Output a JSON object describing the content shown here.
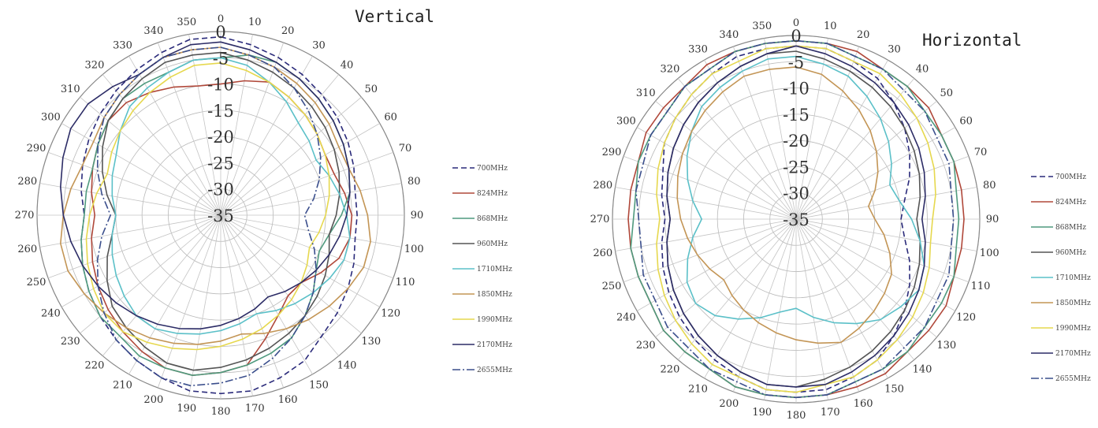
{
  "chart_data": [
    {
      "type": "polar-line",
      "title": "Vertical",
      "angle_ticks": [
        "0",
        "10",
        "20",
        "30",
        "40",
        "50",
        "60",
        "70",
        "80",
        "90",
        "100",
        "110",
        "120",
        "130",
        "140",
        "150",
        "160",
        "170",
        "180",
        "190",
        "200",
        "210",
        "220",
        "230",
        "240",
        "250",
        "260",
        "270",
        "280",
        "290",
        "300",
        "310",
        "320",
        "330",
        "340",
        "350"
      ],
      "radial_ticks": [
        "0",
        "-5",
        "-10",
        "-15",
        "-20",
        "-25",
        "-30",
        "-35"
      ],
      "rlim": [
        -35,
        0
      ],
      "theta_step_deg": 10,
      "grid": true,
      "legend_position": "right",
      "series": [
        {
          "name": "700MHz",
          "color": "#2a2a7a",
          "dash": "7,4",
          "values": [
            -1,
            -2,
            -3,
            -4,
            -5,
            -6,
            -7,
            -8,
            -9,
            -9,
            -9,
            -8,
            -7,
            -6,
            -5,
            -3,
            -2,
            -1,
            -1,
            -1,
            -2,
            -3,
            -4,
            -5,
            -6,
            -7,
            -8,
            -9,
            -8,
            -7,
            -6,
            -5,
            -4,
            -3,
            -2,
            -1
          ]
        },
        {
          "name": "824MHz",
          "color": "#b0483a",
          "dash": "",
          "values": [
            -10,
            -9,
            -8,
            -9,
            -10,
            -11,
            -12,
            -12,
            -11,
            -10,
            -10,
            -11,
            -13,
            -15,
            -15,
            -13,
            -10,
            -6,
            -5,
            -4,
            -4,
            -5,
            -6,
            -7,
            -8,
            -9,
            -10,
            -11,
            -10,
            -9,
            -8,
            -7,
            -7,
            -8,
            -9,
            -10
          ]
        },
        {
          "name": "868MHz",
          "color": "#4f9a7e",
          "dash": "",
          "values": [
            -5,
            -4,
            -4,
            -5,
            -6,
            -7,
            -8,
            -9,
            -10,
            -12,
            -14,
            -15,
            -14,
            -12,
            -10,
            -8,
            -7,
            -6,
            -5,
            -4,
            -4,
            -4,
            -5,
            -5,
            -6,
            -7,
            -8,
            -9,
            -9,
            -9,
            -8,
            -7,
            -6,
            -6,
            -6,
            -5
          ]
        },
        {
          "name": "960MHz",
          "color": "#555555",
          "dash": "",
          "values": [
            -4,
            -5,
            -6,
            -7,
            -8,
            -9,
            -10,
            -11,
            -12,
            -13,
            -14,
            -13,
            -12,
            -11,
            -10,
            -9,
            -8,
            -7,
            -6,
            -5,
            -5,
            -6,
            -7,
            -8,
            -10,
            -12,
            -14,
            -15,
            -13,
            -11,
            -9,
            -7,
            -6,
            -5,
            -4,
            -4
          ]
        },
        {
          "name": "1710MHz",
          "color": "#5bc0c8",
          "dash": "",
          "values": [
            -5,
            -6,
            -8,
            -10,
            -12,
            -13,
            -14,
            -13,
            -12,
            -11,
            -10,
            -10,
            -11,
            -12,
            -13,
            -14,
            -15,
            -14,
            -13,
            -12,
            -11,
            -10,
            -10,
            -11,
            -12,
            -13,
            -14,
            -15,
            -14,
            -13,
            -12,
            -10,
            -8,
            -7,
            -6,
            -5
          ]
        },
        {
          "name": "1850MHz",
          "color": "#c39555",
          "dash": "",
          "values": [
            -3,
            -4,
            -5,
            -6,
            -7,
            -8,
            -9,
            -9,
            -8,
            -7,
            -6,
            -6,
            -7,
            -8,
            -9,
            -10,
            -11,
            -12,
            -11,
            -10,
            -9,
            -8,
            -7,
            -6,
            -5,
            -4,
            -4,
            -5,
            -6,
            -7,
            -7,
            -6,
            -5,
            -4,
            -3,
            -3
          ]
        },
        {
          "name": "1990MHz",
          "color": "#e6d84e",
          "dash": "",
          "values": [
            -6,
            -7,
            -8,
            -9,
            -10,
            -11,
            -12,
            -13,
            -14,
            -15,
            -16,
            -17,
            -16,
            -15,
            -14,
            -13,
            -12,
            -11,
            -10,
            -9,
            -8,
            -7,
            -6,
            -6,
            -7,
            -8,
            -9,
            -10,
            -11,
            -12,
            -11,
            -10,
            -9,
            -8,
            -7,
            -6
          ]
        },
        {
          "name": "2170MHz",
          "color": "#2c2c66",
          "dash": "",
          "values": [
            -2,
            -3,
            -4,
            -5,
            -6,
            -7,
            -8,
            -9,
            -10,
            -11,
            -12,
            -13,
            -14,
            -15,
            -16,
            -17,
            -16,
            -15,
            -14,
            -13,
            -12,
            -11,
            -10,
            -9,
            -8,
            -7,
            -6,
            -5,
            -4,
            -3,
            -2,
            -2,
            -3,
            -4,
            -3,
            -2
          ]
        },
        {
          "name": "2655MHz",
          "color": "#3a4e8c",
          "dash": "10,3,2,3",
          "values": [
            -3,
            -4,
            -5,
            -7,
            -9,
            -11,
            -13,
            -15,
            -17,
            -19,
            -18,
            -16,
            -14,
            -12,
            -10,
            -8,
            -6,
            -4,
            -3,
            -2,
            -2,
            -3,
            -4,
            -6,
            -8,
            -10,
            -12,
            -14,
            -12,
            -10,
            -8,
            -6,
            -5,
            -4,
            -3,
            -3
          ]
        }
      ]
    },
    {
      "type": "polar-line",
      "title": "Horizontal",
      "angle_ticks": [
        "0",
        "10",
        "20",
        "30",
        "40",
        "50",
        "60",
        "70",
        "80",
        "90",
        "100",
        "110",
        "120",
        "130",
        "140",
        "150",
        "160",
        "170",
        "180",
        "190",
        "200",
        "210",
        "220",
        "230",
        "240",
        "250",
        "260",
        "270",
        "280",
        "290",
        "300",
        "310",
        "320",
        "330",
        "340",
        "350"
      ],
      "radial_ticks": [
        "0",
        "-5",
        "-10",
        "-15",
        "-20",
        "-25",
        "-30",
        "-35"
      ],
      "rlim": [
        -35,
        0
      ],
      "theta_step_deg": 10,
      "grid": true,
      "legend_position": "right",
      "series": [
        {
          "name": "700MHz",
          "color": "#2a2a7a",
          "dash": "7,4",
          "values": [
            -2,
            -2,
            -3,
            -4,
            -6,
            -8,
            -10,
            -12,
            -14,
            -15,
            -14,
            -12,
            -10,
            -8,
            -6,
            -4,
            -3,
            -2,
            -2,
            -2,
            -3,
            -4,
            -5,
            -6,
            -7,
            -8,
            -9,
            -10,
            -9,
            -8,
            -6,
            -5,
            -4,
            -3,
            -2,
            -2
          ]
        },
        {
          "name": "824MHz",
          "color": "#b0483a",
          "dash": "",
          "values": [
            -1,
            -1,
            -1,
            -2,
            -2,
            -2,
            -3,
            -3,
            -3,
            -3,
            -3,
            -3,
            -2,
            -2,
            -2,
            -1,
            -1,
            -1,
            -1,
            -1,
            -1,
            -2,
            -2,
            -2,
            -3,
            -3,
            -3,
            -3,
            -3,
            -3,
            -2,
            -2,
            -2,
            -1,
            -1,
            -1
          ]
        },
        {
          "name": "868MHz",
          "color": "#4f9a7e",
          "dash": "",
          "values": [
            -1,
            -1,
            -2,
            -2,
            -2,
            -3,
            -3,
            -3,
            -4,
            -4,
            -4,
            -3,
            -3,
            -3,
            -2,
            -2,
            -2,
            -1,
            -1,
            -1,
            -1,
            -2,
            -2,
            -2,
            -3,
            -3,
            -3,
            -4,
            -4,
            -3,
            -3,
            -3,
            -2,
            -2,
            -1,
            -1
          ]
        },
        {
          "name": "960MHz",
          "color": "#555555",
          "dash": "",
          "values": [
            -3,
            -4,
            -5,
            -6,
            -7,
            -8,
            -9,
            -10,
            -11,
            -12,
            -11,
            -10,
            -9,
            -8,
            -7,
            -6,
            -5,
            -4,
            -3,
            -3,
            -4,
            -5,
            -6,
            -7,
            -8,
            -9,
            -10,
            -11,
            -10,
            -9,
            -8,
            -7,
            -6,
            -5,
            -4,
            -3
          ]
        },
        {
          "name": "1710MHz",
          "color": "#5bc0c8",
          "dash": "",
          "values": [
            -4,
            -5,
            -6,
            -8,
            -10,
            -12,
            -14,
            -16,
            -15,
            -13,
            -11,
            -9,
            -8,
            -9,
            -10,
            -12,
            -14,
            -16,
            -18,
            -17,
            -15,
            -13,
            -11,
            -10,
            -11,
            -13,
            -15,
            -17,
            -15,
            -13,
            -11,
            -9,
            -7,
            -6,
            -5,
            -4
          ]
        },
        {
          "name": "1850MHz",
          "color": "#c39555",
          "dash": "",
          "values": [
            -6,
            -7,
            -9,
            -11,
            -13,
            -15,
            -17,
            -19,
            -21,
            -20,
            -18,
            -16,
            -14,
            -13,
            -12,
            -11,
            -10,
            -11,
            -12,
            -13,
            -14,
            -15,
            -16,
            -17,
            -16,
            -15,
            -14,
            -13,
            -12,
            -11,
            -10,
            -9,
            -8,
            -7,
            -6,
            -6
          ]
        },
        {
          "name": "1990MHz",
          "color": "#e6d84e",
          "dash": "",
          "values": [
            -2,
            -2,
            -3,
            -3,
            -4,
            -5,
            -6,
            -7,
            -8,
            -9,
            -9,
            -8,
            -7,
            -6,
            -5,
            -4,
            -3,
            -3,
            -2,
            -2,
            -3,
            -3,
            -4,
            -5,
            -6,
            -7,
            -8,
            -9,
            -8,
            -7,
            -6,
            -5,
            -4,
            -3,
            -3,
            -2
          ]
        },
        {
          "name": "2170MHz",
          "color": "#2c2c66",
          "dash": "",
          "values": [
            -2,
            -3,
            -4,
            -5,
            -6,
            -7,
            -8,
            -9,
            -10,
            -11,
            -10,
            -9,
            -8,
            -7,
            -6,
            -5,
            -4,
            -3,
            -3,
            -3,
            -4,
            -5,
            -6,
            -7,
            -8,
            -9,
            -10,
            -11,
            -10,
            -9,
            -8,
            -7,
            -6,
            -5,
            -4,
            -3
          ]
        },
        {
          "name": "2655MHz",
          "color": "#3a4e8c",
          "dash": "10,3,2,3",
          "values": [
            -1,
            -1,
            -2,
            -2,
            -3,
            -3,
            -4,
            -4,
            -5,
            -5,
            -5,
            -4,
            -4,
            -3,
            -3,
            -2,
            -2,
            -1,
            -1,
            -1,
            -2,
            -2,
            -3,
            -3,
            -4,
            -4,
            -5,
            -5,
            -4,
            -4,
            -3,
            -3,
            -2,
            -2,
            -1,
            -1
          ]
        }
      ]
    }
  ]
}
